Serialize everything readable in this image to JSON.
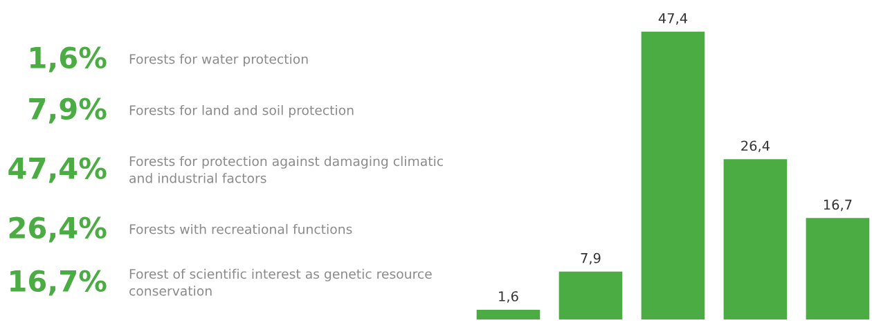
{
  "chart_data": {
    "type": "bar",
    "categories": [
      null,
      null,
      null,
      null,
      null
    ],
    "values": [
      1.6,
      7.9,
      47.4,
      26.4,
      16.7
    ],
    "value_labels": [
      "1,6",
      "7,9",
      "47,4",
      "26,4",
      "16,7"
    ],
    "annotations": [
      "1,6%",
      "Forests for water protection",
      "7,9%",
      "Forests for land and soil protection",
      "47,4%",
      "Forests for protection against damaging climatic and industrial factors",
      "26,4%",
      "Forests with recreational functions",
      "16,7%",
      "Forest of scientific interest as genetic resource conservation"
    ],
    "color": "#4aac42",
    "tick_labels": false
  }
}
